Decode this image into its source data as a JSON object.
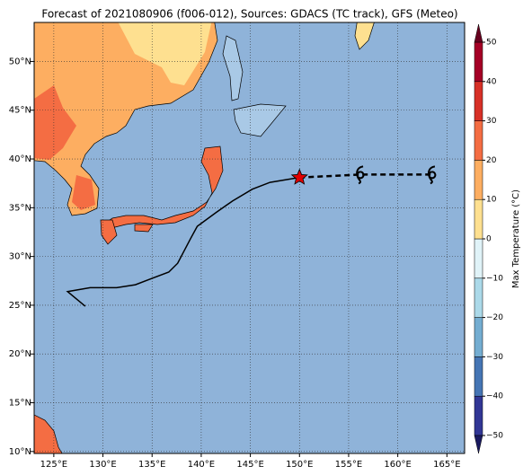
{
  "chart_data": {
    "type": "map",
    "title": "Forecast of 2021080906 (f006-012), Sources: GDACS (TC track), GFS (Meteo)",
    "xlim": [
      123,
      166.8
    ],
    "ylim": [
      9.8,
      54
    ],
    "xticks": [
      {
        "value": 125,
        "label": "125°E"
      },
      {
        "value": 130,
        "label": "130°E"
      },
      {
        "value": 135,
        "label": "135°E"
      },
      {
        "value": 140,
        "label": "140°E"
      },
      {
        "value": 145,
        "label": "145°E"
      },
      {
        "value": 150,
        "label": "150°E"
      },
      {
        "value": 155,
        "label": "155°E"
      },
      {
        "value": 160,
        "label": "160°E"
      },
      {
        "value": 165,
        "label": "165°E"
      }
    ],
    "yticks": [
      {
        "value": 10,
        "label": "10°N"
      },
      {
        "value": 15,
        "label": "15°N"
      },
      {
        "value": 20,
        "label": "20°N"
      },
      {
        "value": 25,
        "label": "25°N"
      },
      {
        "value": 30,
        "label": "30°N"
      },
      {
        "value": 35,
        "label": "35°N"
      },
      {
        "value": 40,
        "label": "40°N"
      },
      {
        "value": 45,
        "label": "45°N"
      },
      {
        "value": 50,
        "label": "50°N"
      }
    ],
    "grid": true,
    "track": {
      "color": "#000000",
      "lon": [
        128.2,
        126.4,
        128.7,
        131.4,
        133.3,
        135.1,
        136.7,
        137.6,
        138.9,
        139.6,
        141.5,
        143.2,
        145.2,
        147.0,
        150.0
      ],
      "lat": [
        24.9,
        26.4,
        26.8,
        26.8,
        27.1,
        27.8,
        28.4,
        29.3,
        31.8,
        33.1,
        34.5,
        35.7,
        36.9,
        37.6,
        38.1
      ]
    },
    "position": {
      "lon": 150.0,
      "lat": 38.1,
      "color": "#e00000"
    },
    "forecast": {
      "lon": [
        150.0,
        156.2,
        163.5
      ],
      "lat": [
        38.1,
        38.4,
        38.4
      ]
    },
    "colorbar": {
      "label": "Max Temperature (°C)",
      "ticks": [
        {
          "value": -50,
          "label": "−50"
        },
        {
          "value": -40,
          "label": "−40"
        },
        {
          "value": -30,
          "label": "−30"
        },
        {
          "value": -20,
          "label": "−20"
        },
        {
          "value": -10,
          "label": "−10"
        },
        0,
        10,
        20,
        30,
        40,
        50
      ],
      "colors": [
        "#313695",
        "#4575b4",
        "#74add1",
        "#abd9e9",
        "#e0f3f8",
        "#fee090",
        "#fdae61",
        "#f46d43",
        "#d73027",
        "#a50026"
      ],
      "extend_colors": [
        "#1a1a60",
        "#67001f"
      ]
    }
  }
}
